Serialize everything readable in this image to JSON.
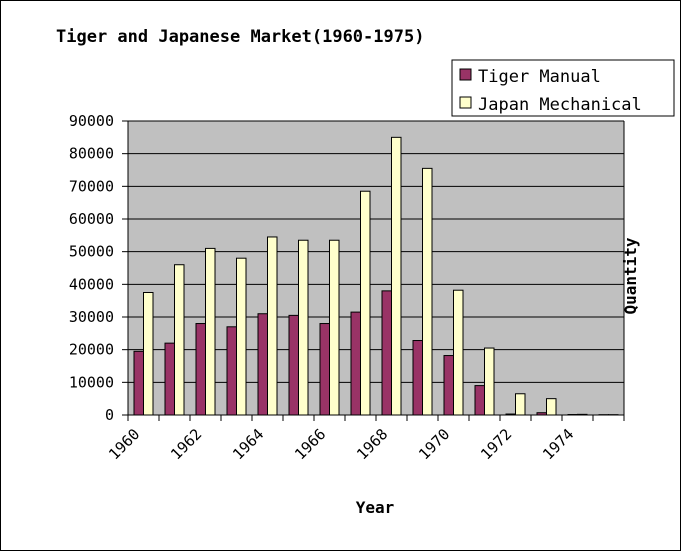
{
  "chart_data": {
    "type": "bar",
    "title": "Tiger and Japanese Market(1960-1975)",
    "xlabel": "Year",
    "ylabel": "Quantity",
    "categories": [
      "1960",
      "1961",
      "1962",
      "1963",
      "1964",
      "1965",
      "1966",
      "1967",
      "1968",
      "1969",
      "1970",
      "1971",
      "1972",
      "1973",
      "1974",
      "1975"
    ],
    "x_tick_labels": [
      "1960",
      "1962",
      "1964",
      "1966",
      "1968",
      "1970",
      "1972",
      "1974"
    ],
    "y_tick_labels": [
      "0",
      "10000",
      "20000",
      "30000",
      "40000",
      "50000",
      "60000",
      "70000",
      "80000",
      "90000"
    ],
    "ylim": [
      0,
      90000
    ],
    "grid": true,
    "legend_position": "top-right",
    "series": [
      {
        "name": "Tiger Manual",
        "color": "#993366",
        "values": [
          19500,
          22000,
          28000,
          27000,
          31000,
          30500,
          28000,
          31500,
          38000,
          22800,
          18200,
          9000,
          300,
          700,
          150,
          100
        ]
      },
      {
        "name": "Japan Mechanical",
        "color": "#ffffcc",
        "values": [
          37500,
          46000,
          51000,
          48000,
          54500,
          53500,
          53500,
          68500,
          85000,
          75500,
          38200,
          20500,
          6500,
          5000,
          200,
          100
        ]
      }
    ]
  }
}
